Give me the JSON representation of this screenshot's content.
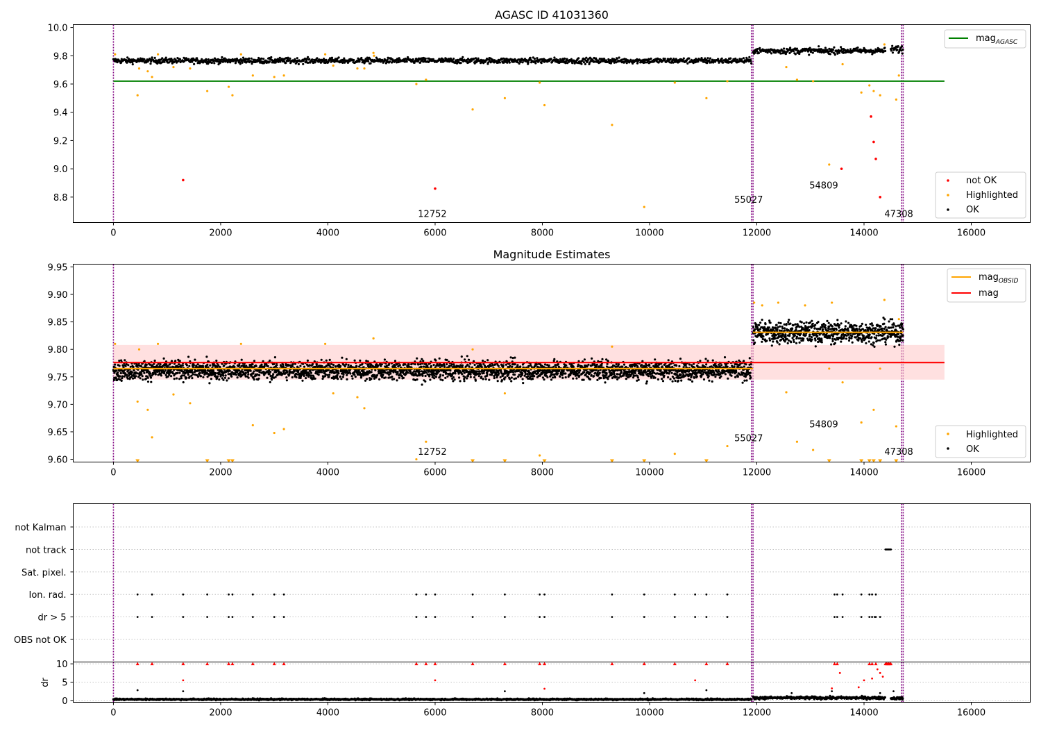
{
  "chart_data": [
    {
      "type": "scatter",
      "title": "AGASC ID 41031360",
      "xlim": [
        -750,
        17100
      ],
      "ylim": [
        8.62,
        10.02
      ],
      "xticks": [
        "0",
        "2000",
        "4000",
        "6000",
        "8000",
        "10000",
        "12000",
        "14000",
        "16000"
      ],
      "xtick_values": [
        0,
        2000,
        4000,
        6000,
        8000,
        10000,
        12000,
        14000,
        16000
      ],
      "yticks": [
        "8.8",
        "9.0",
        "9.2",
        "9.4",
        "9.6",
        "9.8",
        "10.0"
      ],
      "ytick_values": [
        8.8,
        9.0,
        9.2,
        9.4,
        9.6,
        9.8,
        10.0
      ],
      "obs_boundaries": [
        0,
        11900,
        11930,
        14700,
        14730
      ],
      "obs_labels": [
        {
          "text": "12752",
          "x": 6000,
          "y": 8.66
        },
        {
          "text": "55027",
          "x": 11900,
          "y": 8.76
        },
        {
          "text": "54809",
          "x": 13300,
          "y": 8.86
        },
        {
          "text": "47308",
          "x": 14700,
          "y": 8.66
        }
      ],
      "hlines": [
        {
          "name": "mag_AGASC",
          "label": "mag",
          "subscript": "AGASC",
          "y": 9.62,
          "x": [
            0,
            15500
          ],
          "color": "#008000"
        }
      ],
      "ok_series": [
        {
          "x_range": [
            0,
            11900
          ],
          "mean": 9.765,
          "spread": 0.018
        },
        {
          "x_range": [
            11930,
            14400
          ],
          "mean": 9.835,
          "spread": 0.02
        },
        {
          "x_range": [
            14500,
            14730
          ],
          "mean": 9.845,
          "spread": 0.025
        }
      ],
      "highlighted": {
        "x": [
          30,
          450,
          480,
          640,
          720,
          830,
          1120,
          1430,
          1750,
          2150,
          2220,
          2380,
          2600,
          3000,
          3180,
          3950,
          4100,
          4550,
          4680,
          4850,
          4860,
          5650,
          5830,
          6700,
          7300,
          7950,
          8040,
          9300,
          9900,
          10470,
          11060,
          11450,
          12550,
          12750,
          13050,
          13350,
          13600,
          13950,
          14100,
          14180,
          14300,
          14380,
          14600,
          14650
        ],
        "y": [
          9.81,
          9.52,
          9.71,
          9.69,
          9.65,
          9.81,
          9.72,
          9.71,
          9.55,
          9.58,
          9.52,
          9.81,
          9.66,
          9.65,
          9.66,
          9.81,
          9.73,
          9.71,
          9.71,
          9.82,
          9.8,
          9.6,
          9.63,
          9.42,
          9.5,
          9.61,
          9.45,
          9.31,
          8.73,
          9.61,
          9.5,
          9.62,
          9.72,
          9.63,
          9.62,
          9.03,
          9.74,
          9.54,
          9.59,
          9.55,
          9.52,
          9.88,
          9.49,
          9.66
        ]
      },
      "not_ok": {
        "x": [
          1300,
          6000,
          14130,
          14180,
          14220,
          13580,
          14300
        ],
        "y": [
          8.92,
          8.86,
          9.37,
          9.19,
          9.07,
          9.0,
          8.8
        ]
      },
      "legends": [
        {
          "position": "upper right",
          "entries": [
            {
              "label": "mag",
              "subscript": "AGASC",
              "kind": "line",
              "color": "#008000"
            }
          ]
        },
        {
          "position": "lower right",
          "entries": [
            {
              "label": "not OK",
              "kind": "dot",
              "color": "#ff0000"
            },
            {
              "label": "Highlighted",
              "kind": "dot",
              "color": "#ffa500"
            },
            {
              "label": "OK",
              "kind": "dot",
              "color": "#000000"
            }
          ]
        }
      ]
    },
    {
      "type": "scatter",
      "title": "Magnitude Estimates",
      "xlim": [
        -750,
        17100
      ],
      "ylim": [
        9.595,
        9.955
      ],
      "xticks": [
        "0",
        "2000",
        "4000",
        "6000",
        "8000",
        "10000",
        "12000",
        "14000",
        "16000"
      ],
      "xtick_values": [
        0,
        2000,
        4000,
        6000,
        8000,
        10000,
        12000,
        14000,
        16000
      ],
      "yticks": [
        "9.60",
        "9.65",
        "9.70",
        "9.75",
        "9.80",
        "9.85",
        "9.90",
        "9.95"
      ],
      "ytick_values": [
        9.6,
        9.65,
        9.7,
        9.75,
        9.8,
        9.85,
        9.9,
        9.95
      ],
      "obs_boundaries": [
        0,
        11900,
        11930,
        14700,
        14730
      ],
      "obs_labels": [
        {
          "text": "12752",
          "x": 6000,
          "y": 9.608
        },
        {
          "text": "55027",
          "x": 11900,
          "y": 9.633
        },
        {
          "text": "54809",
          "x": 13300,
          "y": 9.658
        },
        {
          "text": "47308",
          "x": 14700,
          "y": 9.608
        }
      ],
      "band": {
        "y": [
          9.745,
          9.808
        ],
        "x": [
          0,
          15500
        ],
        "color": "#ffcccc"
      },
      "hlines": [
        {
          "name": "mag",
          "label": "mag",
          "y": 9.776,
          "x": [
            0,
            15500
          ],
          "color": "#ff0000"
        },
        {
          "name": "mag_OBSID_1",
          "label": "mag",
          "subscript": "OBSID",
          "y": 9.765,
          "x": [
            0,
            11930
          ],
          "color": "#ffa500"
        },
        {
          "name": "mag_OBSID_2",
          "label": "mag",
          "subscript": "OBSID",
          "y": 9.831,
          "x": [
            11930,
            14730
          ],
          "color": "#ffa500"
        }
      ],
      "ok_series": [
        {
          "x_range": [
            0,
            11900
          ],
          "mean": 9.762,
          "spread": 0.016
        },
        {
          "x_range": [
            11930,
            14730
          ],
          "mean": 9.831,
          "spread": 0.018
        }
      ],
      "highlighted": {
        "x": [
          30,
          450,
          480,
          640,
          720,
          830,
          1120,
          1430,
          2380,
          2600,
          3000,
          3180,
          3950,
          4100,
          4550,
          4680,
          4850,
          5650,
          5830,
          6700,
          7300,
          7950,
          9300,
          10470,
          11450,
          12550,
          12750,
          13050,
          13350,
          13600,
          13950,
          14180,
          14300,
          14380,
          14600,
          11950,
          12100,
          12400,
          12900,
          13400,
          14650
        ],
        "y": [
          9.81,
          9.705,
          9.8,
          9.69,
          9.64,
          9.81,
          9.718,
          9.702,
          9.81,
          9.662,
          9.648,
          9.655,
          9.81,
          9.72,
          9.713,
          9.693,
          9.82,
          9.6,
          9.632,
          9.8,
          9.72,
          9.607,
          9.805,
          9.61,
          9.624,
          9.722,
          9.632,
          9.617,
          9.765,
          9.74,
          9.667,
          9.69,
          9.765,
          9.89,
          9.66,
          9.885,
          9.88,
          9.885,
          9.88,
          9.885,
          9.855
        ]
      },
      "clipped_triangles_x": [
        450,
        1750,
        2150,
        2220,
        6700,
        7300,
        8040,
        9300,
        9900,
        11060,
        13350,
        13950,
        14100,
        14180,
        14300,
        14600
      ],
      "legends": [
        {
          "position": "upper right",
          "entries": [
            {
              "label": "mag",
              "subscript": "OBSID",
              "kind": "line",
              "color": "#ffa500"
            },
            {
              "label": "mag",
              "kind": "line",
              "color": "#ff0000"
            }
          ]
        },
        {
          "position": "lower right",
          "entries": [
            {
              "label": "Highlighted",
              "kind": "dot",
              "color": "#ffa500"
            },
            {
              "label": "OK",
              "kind": "dot",
              "color": "#000000"
            }
          ]
        }
      ]
    },
    {
      "type": "scatter",
      "title": "",
      "xlim": [
        -750,
        17100
      ],
      "flag_rows": [
        "not Kalman",
        "not track",
        "Sat. pixel.",
        "Ion. rad.",
        "dr > 5",
        "OBS not OK"
      ],
      "flags": {
        "not track": {
          "x": [
            14400,
            14420,
            14440,
            14460,
            14480,
            14500
          ]
        },
        "Ion. rad.": {
          "x": [
            450,
            720,
            1300,
            1750,
            2150,
            2220,
            2600,
            3000,
            3180,
            5650,
            5830,
            6000,
            6700,
            7300,
            7950,
            8040,
            9300,
            9900,
            10470,
            10850,
            11060,
            11450,
            13450,
            13500,
            13600,
            13950,
            14100,
            14150,
            14220
          ]
        },
        "dr > 5": {
          "x": [
            450,
            720,
            1300,
            1750,
            2150,
            2220,
            2600,
            3000,
            3180,
            5650,
            5830,
            6000,
            6700,
            7300,
            7950,
            8040,
            9300,
            9900,
            10470,
            10850,
            11060,
            11450,
            13450,
            13500,
            13600,
            13950,
            14100,
            14150,
            14200,
            14220,
            14300
          ]
        }
      },
      "dr": {
        "ylim": [
          -0.5,
          10.5
        ],
        "yticks": [
          "0",
          "5",
          "10"
        ],
        "ytick_values": [
          0,
          5,
          10
        ],
        "ylabel": "dr",
        "ok_series": [
          {
            "x_range": [
              0,
              11900
            ],
            "mean": 0.3,
            "spread": 0.2
          },
          {
            "x_range": [
              11930,
              14400
            ],
            "mean": 0.7,
            "spread": 0.35
          },
          {
            "x_range": [
              14500,
              14730
            ],
            "mean": 0.6,
            "spread": 0.3
          }
        ],
        "clipped_red_x": [
          450,
          720,
          1300,
          1750,
          2150,
          2220,
          2600,
          3000,
          3180,
          5650,
          5830,
          6000,
          6700,
          7300,
          7950,
          8040,
          9300,
          9900,
          10470,
          11060,
          11450,
          13450,
          13500,
          14100,
          14150,
          14220,
          14400,
          14420,
          14440,
          14460,
          14480,
          14500
        ],
        "red_points": {
          "x": [
            1300,
            6000,
            8040,
            10850,
            13400,
            13550,
            13900,
            14000,
            14150,
            14250,
            14300,
            14350
          ],
          "y": [
            5.5,
            5.5,
            3.2,
            5.5,
            3.3,
            7.5,
            3.6,
            5.5,
            6.0,
            8.5,
            7.5,
            6.5
          ]
        },
        "black_points": {
          "x": [
            450,
            1300,
            7300,
            9900,
            11060,
            12650,
            13400,
            14550,
            14300
          ],
          "y": [
            2.8,
            2.5,
            2.5,
            2.0,
            2.8,
            2.0,
            2.5,
            2.5,
            2.0
          ]
        }
      },
      "xticks": [
        "0",
        "2000",
        "4000",
        "6000",
        "8000",
        "10000",
        "12000",
        "14000",
        "16000"
      ],
      "xtick_values": [
        0,
        2000,
        4000,
        6000,
        8000,
        10000,
        12000,
        14000,
        16000
      ],
      "obs_boundaries": [
        0,
        11900,
        11930,
        14700,
        14730
      ]
    }
  ],
  "colors": {
    "ok": "#000000",
    "highlighted": "#ffa500",
    "not_ok": "#ff0000",
    "obs_line": "#800080",
    "agasc_line": "#008000",
    "mag_line": "#ff0000",
    "mag_obsid_line": "#ffa500"
  }
}
